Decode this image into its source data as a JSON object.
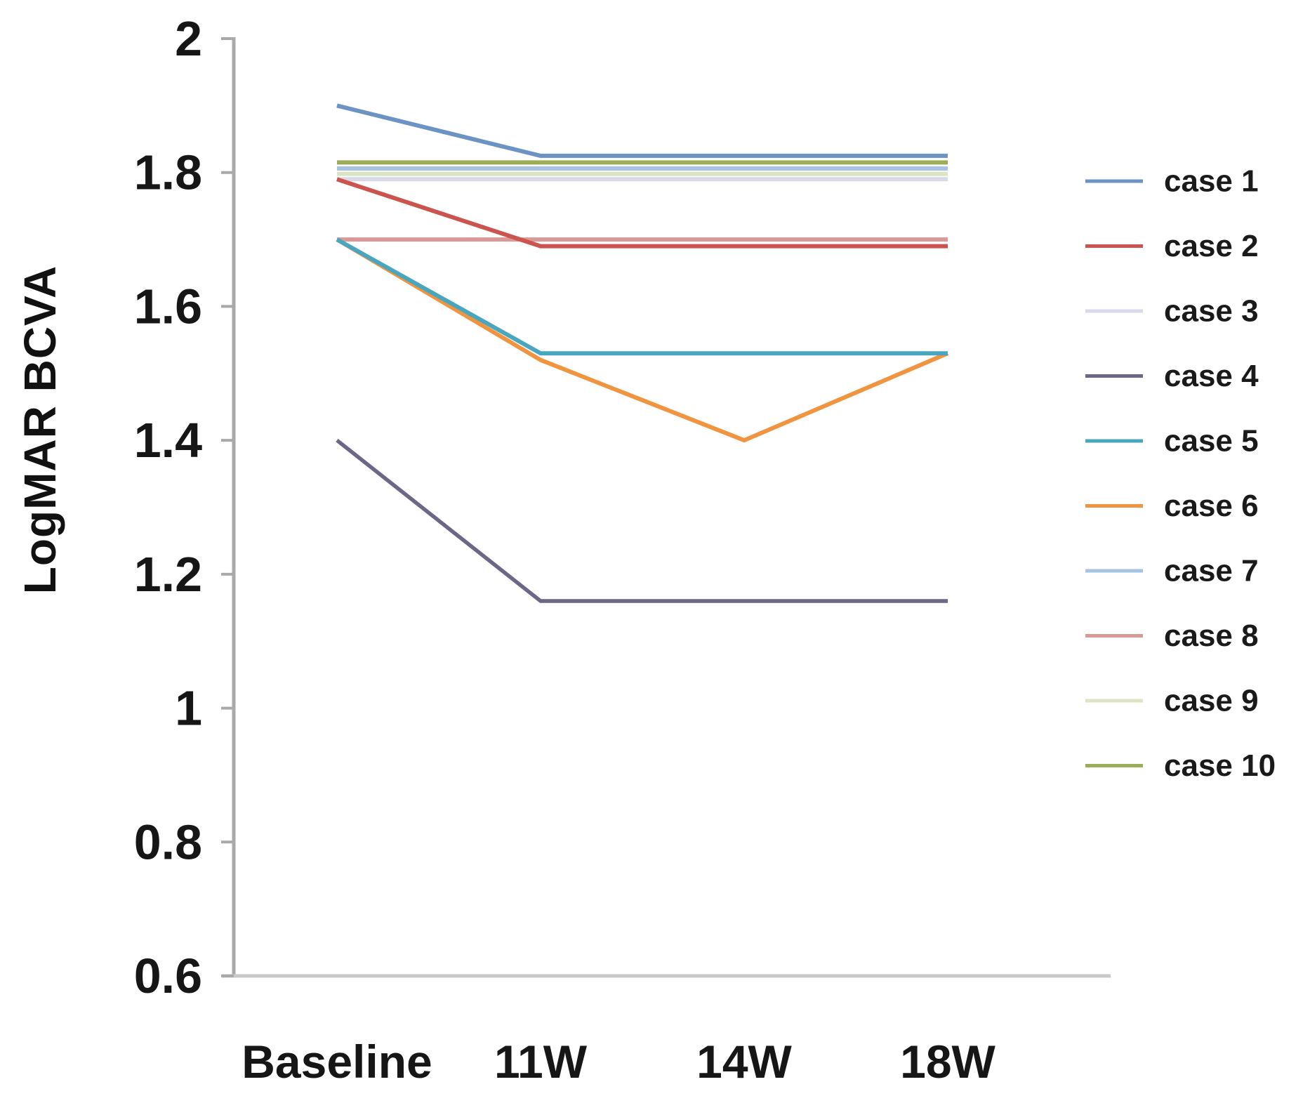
{
  "chart_data": {
    "type": "line",
    "title": "",
    "xlabel": "",
    "ylabel": "LogMAR BCVA",
    "categories": [
      "Baseline",
      "11W",
      "14W",
      "18W"
    ],
    "ylim": [
      0.6,
      2.0
    ],
    "y_tick_labels": [
      "2",
      "1.8",
      "1.6",
      "1.4",
      "1.2",
      "1",
      "0.8",
      "0.6"
    ],
    "y_tick_values": [
      2.0,
      1.8,
      1.6,
      1.4,
      1.2,
      1.0,
      0.8,
      0.6
    ],
    "grid": false,
    "legend_position": "right",
    "axis_color": "#a9a9a9",
    "x_axis_line_color": "#c9c9c9",
    "series": [
      {
        "name": "case 1",
        "color": "#6b93c4",
        "values": [
          1.9,
          1.825,
          1.825,
          1.825
        ]
      },
      {
        "name": "case 2",
        "color": "#cb544f",
        "values": [
          1.79,
          1.69,
          1.69,
          1.69
        ]
      },
      {
        "name": "case 3",
        "color": "#d9dae8",
        "values": [
          1.79,
          1.79,
          1.79,
          1.79
        ]
      },
      {
        "name": "case 4",
        "color": "#6b6787",
        "values": [
          1.4,
          1.16,
          1.16,
          1.16
        ]
      },
      {
        "name": "case 5",
        "color": "#48a7bf",
        "values": [
          1.7,
          1.53,
          1.53,
          1.53
        ]
      },
      {
        "name": "case 6",
        "color": "#f0943f",
        "values": [
          1.7,
          1.52,
          1.4,
          1.53
        ]
      },
      {
        "name": "case 7",
        "color": "#a6c3e3",
        "values": [
          1.806,
          1.806,
          1.806,
          1.806
        ]
      },
      {
        "name": "case 8",
        "color": "#d89a98",
        "values": [
          1.7,
          1.7,
          1.7,
          1.7
        ]
      },
      {
        "name": "case 9",
        "color": "#dce4c3",
        "values": [
          1.798,
          1.798,
          1.798,
          1.798
        ]
      },
      {
        "name": "case 10",
        "color": "#9cad57",
        "values": [
          1.815,
          1.815,
          1.815,
          1.815
        ]
      }
    ]
  }
}
